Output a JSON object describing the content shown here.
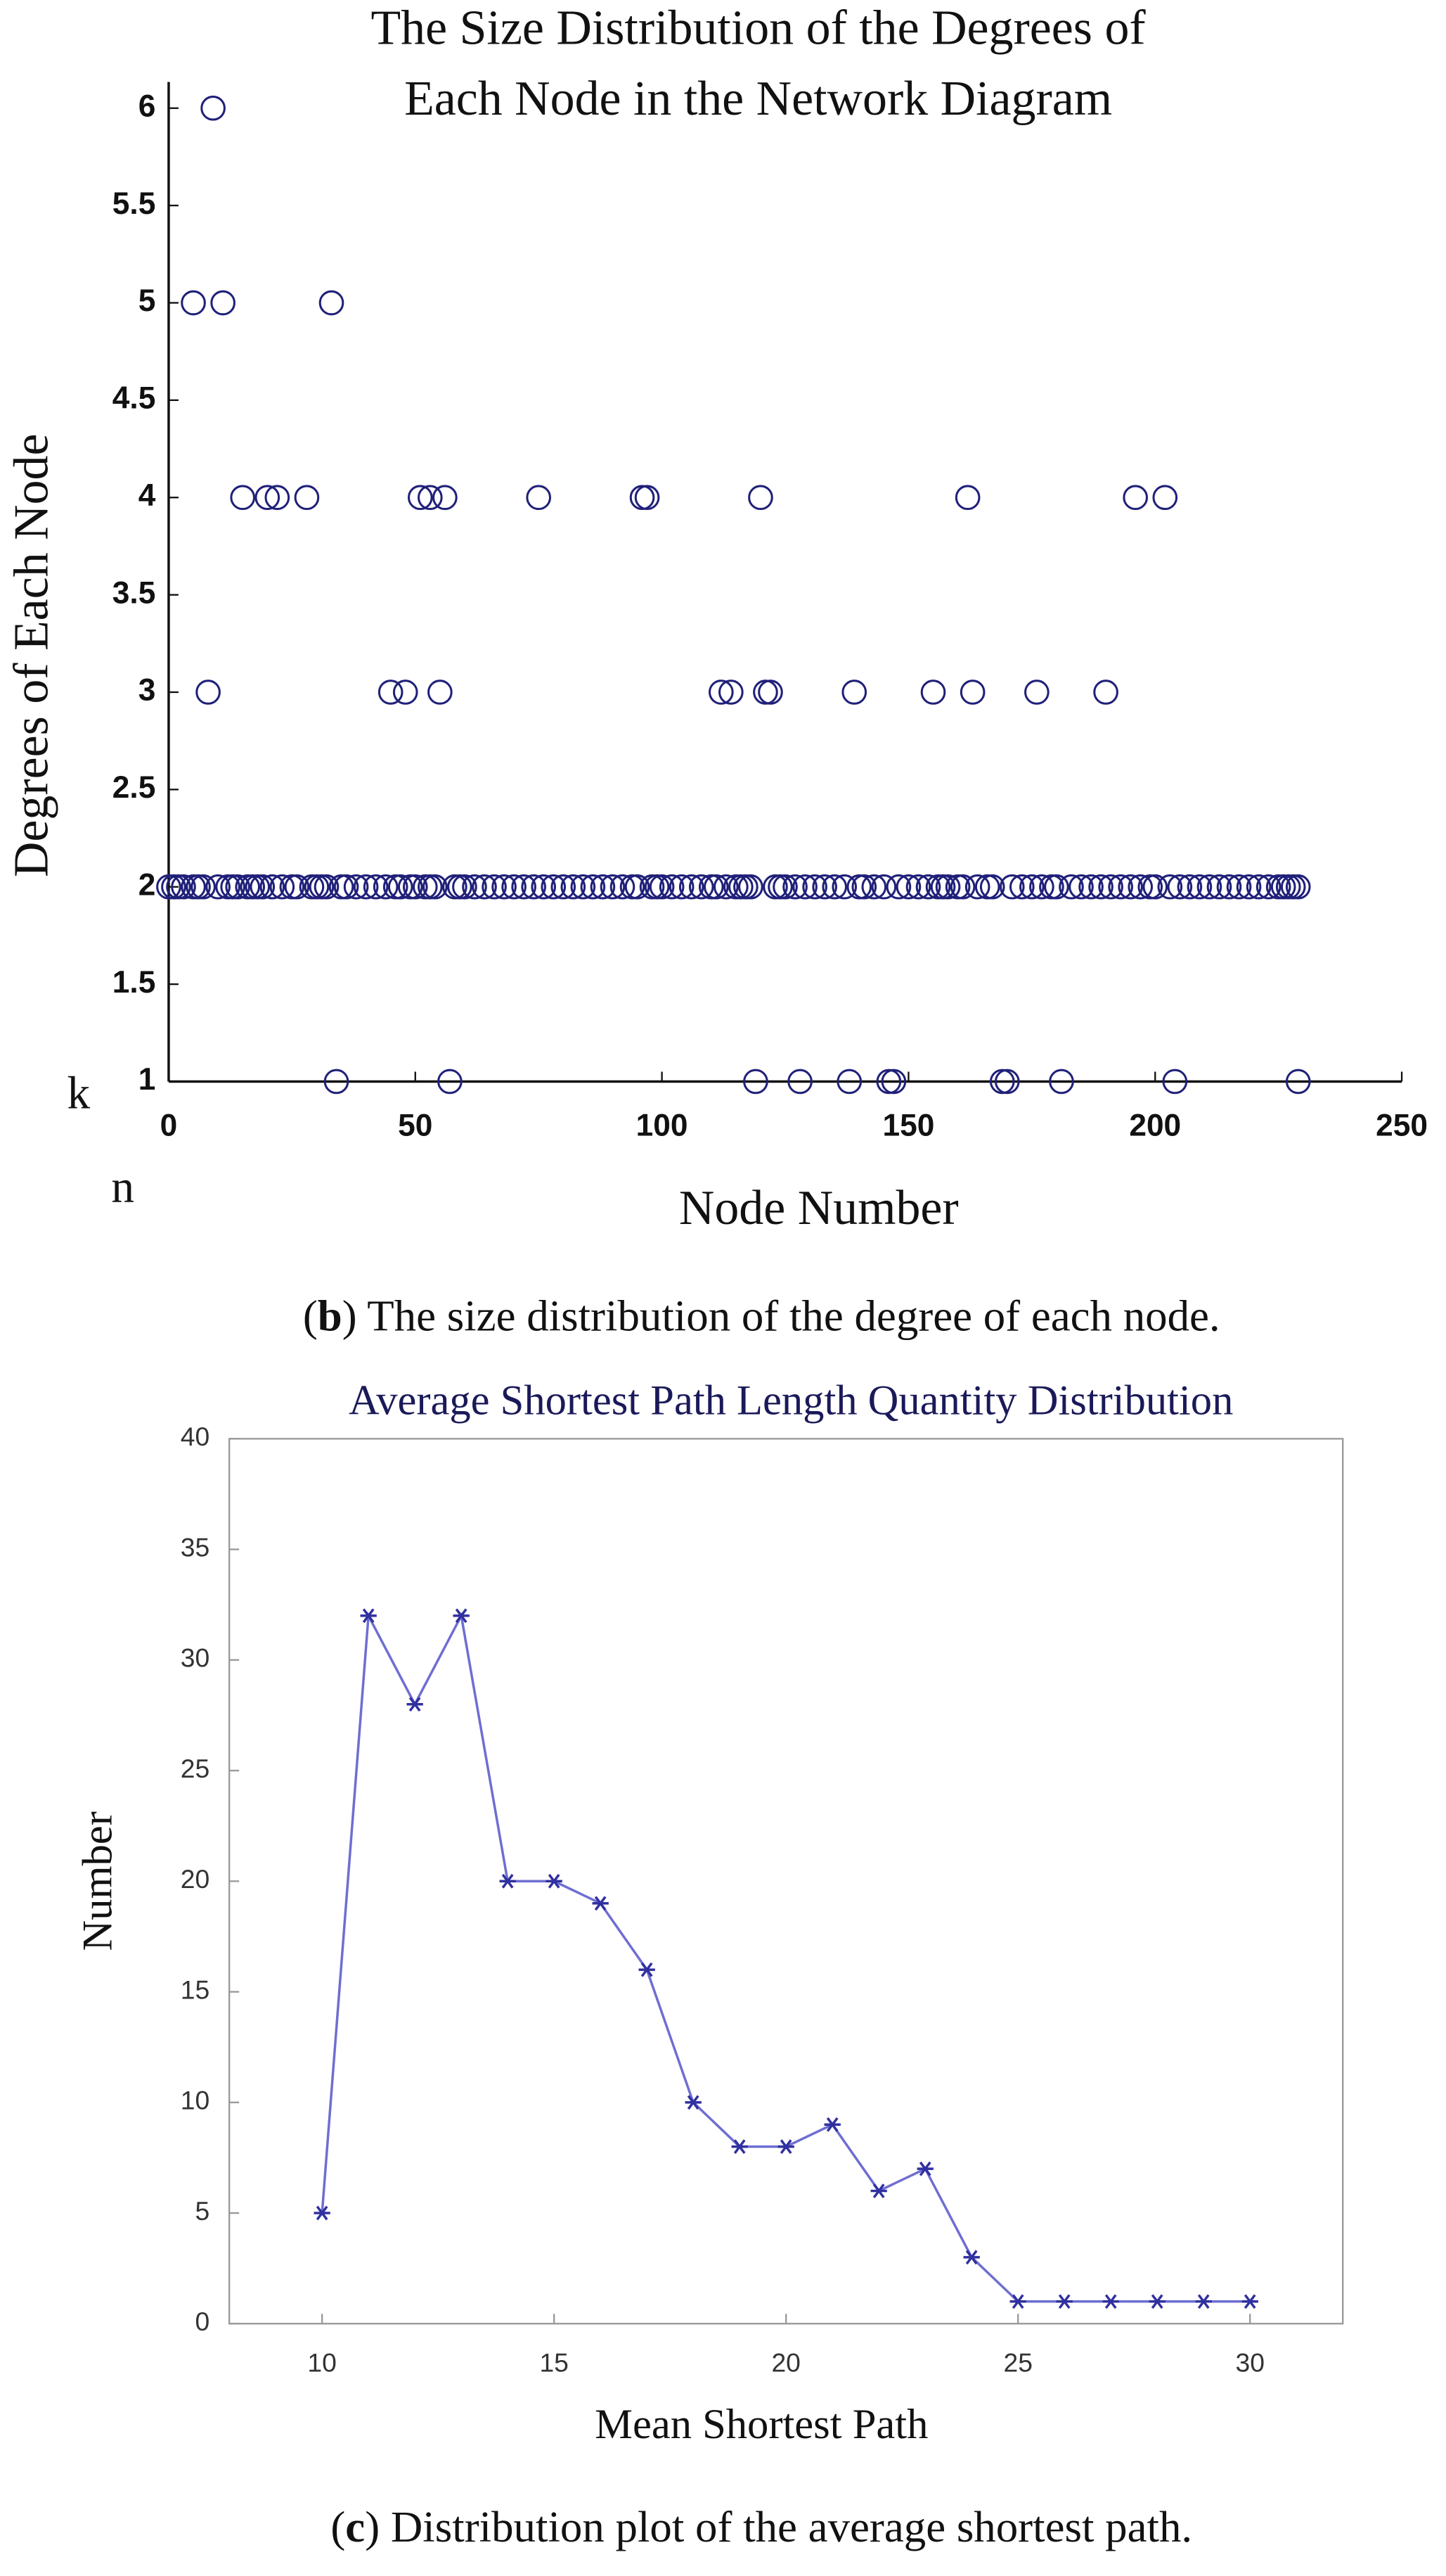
{
  "chart_data": [
    {
      "type": "scatter",
      "title": [
        "The Size Distribution of the Degrees of",
        "Each Node in the Network Diagram"
      ],
      "x_label": "Node Number",
      "y_label": "Degrees of Each Node",
      "annotations": [
        "k",
        "n"
      ],
      "caption": [
        "(",
        "b",
        ") The size distribution of the degree of each node."
      ],
      "color": "#20207a",
      "x": [
        9,
        5,
        11,
        33,
        15,
        20,
        22,
        28,
        51,
        53,
        56,
        75,
        96,
        97,
        120,
        162,
        196,
        202,
        8,
        45,
        48,
        55,
        112,
        114,
        121,
        122,
        139,
        155,
        163,
        176,
        190,
        34,
        57,
        119,
        128,
        138,
        146,
        147,
        169,
        170,
        181,
        204,
        229,
        0,
        1,
        2,
        3,
        5,
        6,
        7,
        10,
        12,
        13,
        14,
        16,
        17,
        18,
        19,
        21,
        23,
        25,
        26,
        29,
        30,
        31,
        32,
        35,
        36,
        38,
        40,
        42,
        44,
        46,
        47,
        49,
        50,
        52,
        53,
        54,
        58,
        59,
        60,
        62,
        64,
        66,
        68,
        70,
        72,
        74,
        76,
        78,
        80,
        82,
        84,
        86,
        88,
        90,
        92,
        94,
        95,
        98,
        99,
        100,
        102,
        104,
        106,
        108,
        110,
        111,
        113,
        115,
        116,
        117,
        118,
        123,
        124,
        125,
        127,
        129,
        131,
        133,
        135,
        137,
        140,
        141,
        143,
        145,
        148,
        150,
        152,
        154,
        156,
        157,
        158,
        160,
        161,
        164,
        166,
        167,
        171,
        173,
        175,
        177,
        179,
        180,
        183,
        185,
        187,
        189,
        191,
        193,
        195,
        197,
        199,
        200,
        203,
        205,
        207,
        209,
        211,
        213,
        215,
        217,
        219,
        221,
        223,
        225,
        226,
        227,
        228,
        229
      ],
      "values": [
        6,
        5,
        5,
        5,
        4,
        4,
        4,
        4,
        4,
        4,
        4,
        4,
        4,
        4,
        4,
        4,
        4,
        4,
        3,
        3,
        3,
        3,
        3,
        3,
        3,
        3,
        3,
        3,
        3,
        3,
        3,
        1,
        1,
        1,
        1,
        1,
        1,
        1,
        1,
        1,
        1,
        1,
        1,
        2,
        2,
        2,
        2,
        2,
        2,
        2,
        2,
        2,
        2,
        2,
        2,
        2,
        2,
        2,
        2,
        2,
        2,
        2,
        2,
        2,
        2,
        2,
        2,
        2,
        2,
        2,
        2,
        2,
        2,
        2,
        2,
        2,
        2,
        2,
        2,
        2,
        2,
        2,
        2,
        2,
        2,
        2,
        2,
        2,
        2,
        2,
        2,
        2,
        2,
        2,
        2,
        2,
        2,
        2,
        2,
        2,
        2,
        2,
        2,
        2,
        2,
        2,
        2,
        2,
        2,
        2,
        2,
        2,
        2,
        2,
        2,
        2,
        2,
        2,
        2,
        2,
        2,
        2,
        2,
        2,
        2,
        2,
        2,
        2,
        2,
        2,
        2,
        2,
        2,
        2,
        2,
        2,
        2,
        2,
        2,
        2,
        2,
        2,
        2,
        2,
        2,
        2,
        2,
        2,
        2,
        2,
        2,
        2,
        2,
        2,
        2,
        2,
        2,
        2,
        2,
        2,
        2,
        2,
        2,
        2,
        2,
        2,
        2,
        2,
        2,
        2,
        2
      ],
      "xlim": [
        0,
        250
      ],
      "xticks": [
        0,
        50,
        100,
        150,
        200,
        250
      ],
      "ylim": [
        1,
        6
      ],
      "yticks": [
        1,
        1.5,
        2,
        2.5,
        3,
        3.5,
        4,
        4.5,
        5,
        5.5,
        6
      ]
    },
    {
      "type": "line",
      "title": "Average Shortest Path Length Quantity Distribution",
      "x_label": "Mean Shortest Path",
      "y_label": "Number",
      "caption": [
        "(",
        "c",
        ") Distribution plot of the average shortest path."
      ],
      "color": "#6e6ed2",
      "x": [
        10,
        11,
        12,
        13,
        14,
        15,
        16,
        17,
        18,
        19,
        20,
        21,
        22,
        23,
        24,
        25,
        26,
        27,
        28,
        29,
        30
      ],
      "values": [
        5,
        32,
        28,
        32,
        20,
        20,
        19,
        16,
        10,
        8,
        8,
        9,
        6,
        7,
        3,
        1,
        1,
        1,
        1,
        1,
        1
      ],
      "xlim": [
        8,
        32
      ],
      "xticks": [
        10,
        15,
        20,
        25,
        30
      ],
      "ylim": [
        0,
        40
      ],
      "yticks": [
        0,
        5,
        10,
        15,
        20,
        25,
        30,
        35,
        40
      ]
    }
  ]
}
